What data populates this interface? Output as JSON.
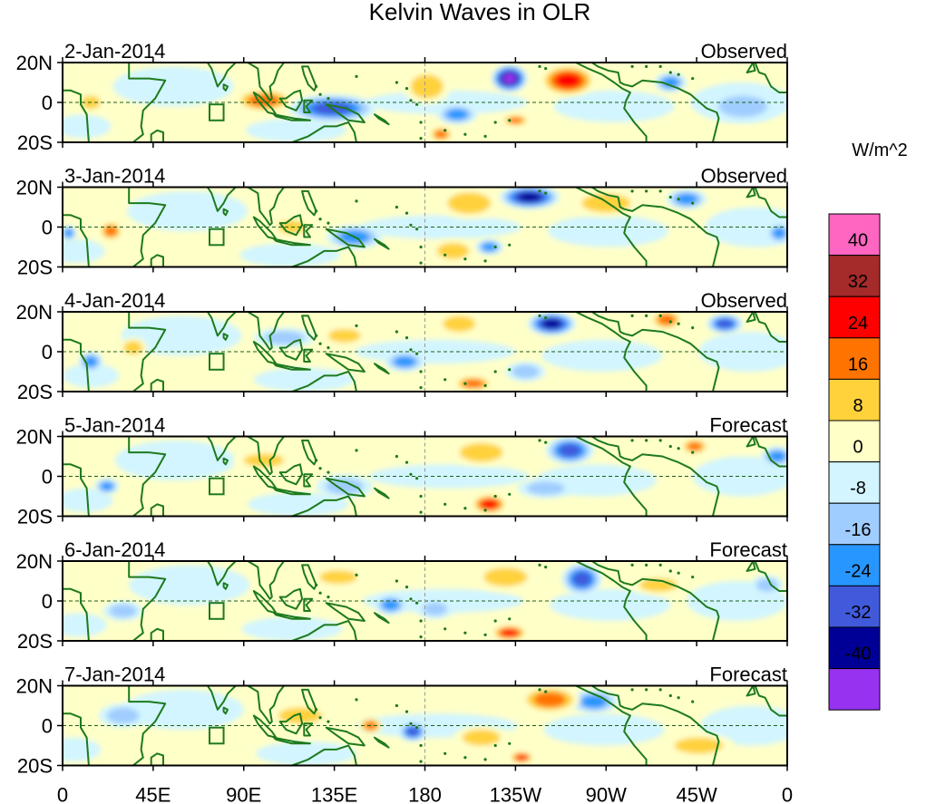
{
  "title": "Kelvin Waves in OLR",
  "chart_data": {
    "type": "heatmap",
    "title": "Kelvin Waves in OLR",
    "units": "W/m^2",
    "lat_ticks": [
      "20N",
      "0",
      "20S"
    ],
    "lat_range": [
      -20,
      20
    ],
    "lon_range": [
      0,
      360
    ],
    "lon_ticks": [
      {
        "lon": 0,
        "label": "0"
      },
      {
        "lon": 45,
        "label": "45E"
      },
      {
        "lon": 90,
        "label": "90E"
      },
      {
        "lon": 135,
        "label": "135E"
      },
      {
        "lon": 180,
        "label": "180"
      },
      {
        "lon": 225,
        "label": "135W"
      },
      {
        "lon": 270,
        "label": "90W"
      },
      {
        "lon": 315,
        "label": "45W"
      },
      {
        "lon": 360,
        "label": "0"
      }
    ],
    "levels": [
      "40",
      "32",
      "24",
      "16",
      "8",
      "0",
      "-8",
      "-16",
      "-24",
      "-32",
      "-40"
    ],
    "colors": [
      "#ff66c2",
      "#a52a2a",
      "#ff0000",
      "#ff7300",
      "#ffd23c",
      "#ffffc8",
      "#d2f5ff",
      "#a0cdff",
      "#2896ff",
      "#415adc",
      "#000096",
      "#9632f0"
    ],
    "panels": [
      {
        "date": "2-Jan-2014",
        "label": "Observed",
        "anomalies": [
          {
            "lon": 222,
            "lat": 12,
            "value": -40,
            "rx": 9,
            "ry": 7
          },
          {
            "lon": 251,
            "lat": 11,
            "value": 24,
            "rx": 14,
            "ry": 8
          },
          {
            "lon": 302,
            "lat": 10,
            "value": -16,
            "rx": 8,
            "ry": 5
          },
          {
            "lon": 134,
            "lat": -3,
            "value": -24,
            "rx": 22,
            "ry": 7
          },
          {
            "lon": 100,
            "lat": 1,
            "value": 16,
            "rx": 15,
            "ry": 6
          },
          {
            "lon": 181,
            "lat": 8,
            "value": 8,
            "rx": 12,
            "ry": 9
          },
          {
            "lon": 188,
            "lat": -16,
            "value": 16,
            "rx": 6,
            "ry": 4
          },
          {
            "lon": 225,
            "lat": -9,
            "value": 16,
            "rx": 7,
            "ry": 3
          },
          {
            "lon": 196,
            "lat": -6,
            "value": -16,
            "rx": 10,
            "ry": 5
          },
          {
            "lon": 14,
            "lat": 0,
            "value": 8,
            "rx": 7,
            "ry": 5
          },
          {
            "lon": 338,
            "lat": -2,
            "value": -8,
            "rx": 18,
            "ry": 8
          }
        ]
      },
      {
        "date": "3-Jan-2014",
        "label": "Observed",
        "anomalies": [
          {
            "lon": 232,
            "lat": 15,
            "value": -32,
            "rx": 15,
            "ry": 6
          },
          {
            "lon": 310,
            "lat": 14,
            "value": -16,
            "rx": 10,
            "ry": 5
          },
          {
            "lon": 202,
            "lat": 12,
            "value": 8,
            "rx": 16,
            "ry": 8
          },
          {
            "lon": 270,
            "lat": 12,
            "value": 8,
            "rx": 18,
            "ry": 7
          },
          {
            "lon": 145,
            "lat": -5,
            "value": -16,
            "rx": 14,
            "ry": 6
          },
          {
            "lon": 114,
            "lat": 0,
            "value": 8,
            "rx": 10,
            "ry": 5
          },
          {
            "lon": 24,
            "lat": -2,
            "value": 16,
            "rx": 6,
            "ry": 5
          },
          {
            "lon": 212,
            "lat": -10,
            "value": -16,
            "rx": 7,
            "ry": 4
          },
          {
            "lon": 194,
            "lat": -12,
            "value": 8,
            "rx": 12,
            "ry": 6
          },
          {
            "lon": 356,
            "lat": -3,
            "value": -16,
            "rx": 6,
            "ry": 5
          },
          {
            "lon": 3,
            "lat": -3,
            "value": -16,
            "rx": 4,
            "ry": 4
          }
        ]
      },
      {
        "date": "4-Jan-2014",
        "label": "Observed",
        "anomalies": [
          {
            "lon": 243,
            "lat": 14,
            "value": -32,
            "rx": 12,
            "ry": 6
          },
          {
            "lon": 329,
            "lat": 14,
            "value": -24,
            "rx": 9,
            "ry": 5
          },
          {
            "lon": 300,
            "lat": 16,
            "value": 16,
            "rx": 8,
            "ry": 5
          },
          {
            "lon": 197,
            "lat": 14,
            "value": 8,
            "rx": 12,
            "ry": 6
          },
          {
            "lon": 170,
            "lat": -5,
            "value": -16,
            "rx": 10,
            "ry": 5
          },
          {
            "lon": 204,
            "lat": -16,
            "value": 16,
            "rx": 10,
            "ry": 4
          },
          {
            "lon": 230,
            "lat": -10,
            "value": -8,
            "rx": 10,
            "ry": 5
          },
          {
            "lon": 14,
            "lat": -5,
            "value": -16,
            "rx": 6,
            "ry": 5
          },
          {
            "lon": 35,
            "lat": 2,
            "value": 8,
            "rx": 7,
            "ry": 5
          },
          {
            "lon": 110,
            "lat": 7,
            "value": -8,
            "rx": 15,
            "ry": 5
          },
          {
            "lon": 140,
            "lat": 8,
            "value": 8,
            "rx": 12,
            "ry": 5
          }
        ]
      },
      {
        "date": "5-Jan-2014",
        "label": "Forecast",
        "anomalies": [
          {
            "lon": 252,
            "lat": 13,
            "value": -24,
            "rx": 12,
            "ry": 7
          },
          {
            "lon": 208,
            "lat": 12,
            "value": 8,
            "rx": 16,
            "ry": 7
          },
          {
            "lon": 314,
            "lat": 15,
            "value": 16,
            "rx": 7,
            "ry": 4
          },
          {
            "lon": 212,
            "lat": -14,
            "value": 24,
            "rx": 9,
            "ry": 5
          },
          {
            "lon": 22,
            "lat": -5,
            "value": -16,
            "rx": 6,
            "ry": 4
          },
          {
            "lon": 140,
            "lat": -5,
            "value": -8,
            "rx": 14,
            "ry": 6
          },
          {
            "lon": 355,
            "lat": 10,
            "value": -16,
            "rx": 8,
            "ry": 5
          },
          {
            "lon": 240,
            "lat": -6,
            "value": -8,
            "rx": 14,
            "ry": 5
          },
          {
            "lon": 100,
            "lat": 8,
            "value": 8,
            "rx": 15,
            "ry": 5
          }
        ]
      },
      {
        "date": "6-Jan-2014",
        "label": "Forecast",
        "anomalies": [
          {
            "lon": 258,
            "lat": 11,
            "value": -24,
            "rx": 10,
            "ry": 8
          },
          {
            "lon": 220,
            "lat": 12,
            "value": 8,
            "rx": 16,
            "ry": 7
          },
          {
            "lon": 222,
            "lat": -16,
            "value": 24,
            "rx": 9,
            "ry": 4
          },
          {
            "lon": 163,
            "lat": -2,
            "value": -16,
            "rx": 8,
            "ry": 5
          },
          {
            "lon": 185,
            "lat": -4,
            "value": -8,
            "rx": 9,
            "ry": 5
          },
          {
            "lon": 137,
            "lat": 12,
            "value": 8,
            "rx": 14,
            "ry": 5
          },
          {
            "lon": 296,
            "lat": 8,
            "value": 8,
            "rx": 14,
            "ry": 5
          },
          {
            "lon": 30,
            "lat": -5,
            "value": -8,
            "rx": 10,
            "ry": 5
          },
          {
            "lon": 350,
            "lat": 8,
            "value": -8,
            "rx": 8,
            "ry": 5
          }
        ]
      },
      {
        "date": "7-Jan-2014",
        "label": "Forecast",
        "anomalies": [
          {
            "lon": 264,
            "lat": 12,
            "value": -16,
            "rx": 12,
            "ry": 6
          },
          {
            "lon": 242,
            "lat": 13,
            "value": 16,
            "rx": 15,
            "ry": 7
          },
          {
            "lon": 174,
            "lat": -3,
            "value": -24,
            "rx": 7,
            "ry": 5
          },
          {
            "lon": 153,
            "lat": 0,
            "value": 16,
            "rx": 6,
            "ry": 4
          },
          {
            "lon": 228,
            "lat": -16,
            "value": 24,
            "rx": 6,
            "ry": 3
          },
          {
            "lon": 208,
            "lat": -6,
            "value": 8,
            "rx": 14,
            "ry": 6
          },
          {
            "lon": 316,
            "lat": -10,
            "value": 8,
            "rx": 18,
            "ry": 6
          },
          {
            "lon": 30,
            "lat": 5,
            "value": -8,
            "rx": 12,
            "ry": 6
          },
          {
            "lon": 118,
            "lat": 5,
            "value": 8,
            "rx": 16,
            "ry": 6
          }
        ]
      }
    ]
  }
}
